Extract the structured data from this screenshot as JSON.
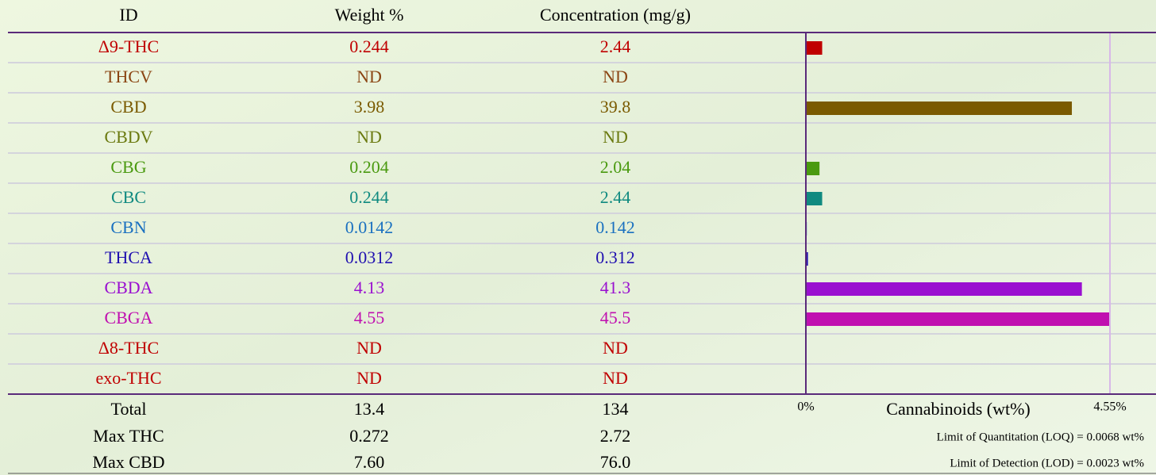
{
  "header": [
    "ID",
    "Weight %",
    "Concentration (mg/g)"
  ],
  "rows": [
    {
      "id": "Δ9-THC",
      "weight": "0.244",
      "conc": "2.44",
      "color": "#c00000"
    },
    {
      "id": "THCV",
      "weight": "ND",
      "conc": "ND",
      "color": "#8b4513"
    },
    {
      "id": "CBD",
      "weight": "3.98",
      "conc": "39.8",
      "color": "#7a5a00"
    },
    {
      "id": "CBDV",
      "weight": "ND",
      "conc": "ND",
      "color": "#6b7a10"
    },
    {
      "id": "CBG",
      "weight": "0.204",
      "conc": "2.04",
      "color": "#4a9a10"
    },
    {
      "id": "CBC",
      "weight": "0.244",
      "conc": "2.44",
      "color": "#108a80"
    },
    {
      "id": "CBN",
      "weight": "0.0142",
      "conc": "0.142",
      "color": "#1a70c0"
    },
    {
      "id": "THCA",
      "weight": "0.0312",
      "conc": "0.312",
      "color": "#2010b0"
    },
    {
      "id": "CBDA",
      "weight": "4.13",
      "conc": "41.3",
      "color": "#9a10d0"
    },
    {
      "id": "CBGA",
      "weight": "4.55",
      "conc": "45.5",
      "color": "#c010b0"
    },
    {
      "id": "Δ8-THC",
      "weight": "ND",
      "conc": "ND",
      "color": "#c00000"
    },
    {
      "id": "exo-THC",
      "weight": "ND",
      "conc": "ND",
      "color": "#c00000"
    }
  ],
  "totals": [
    [
      "Total",
      "13.4",
      "134"
    ],
    [
      "Max THC",
      "0.272",
      "2.72"
    ],
    [
      "Max CBD",
      "7.60",
      "76.0"
    ]
  ],
  "chart": {
    "axis_label": "Cannabinoids (wt%)",
    "xlim": [
      0,
      4.55
    ],
    "xticks": [
      {
        "value": 0,
        "label": "0%"
      },
      {
        "value": 4.55,
        "label": "4.55%"
      }
    ]
  },
  "notes": [
    "Limit of Quantitation (LOQ) = 0.0068 wt%",
    "Limit of Detection (LOD) = 0.0023 wt%"
  ]
}
